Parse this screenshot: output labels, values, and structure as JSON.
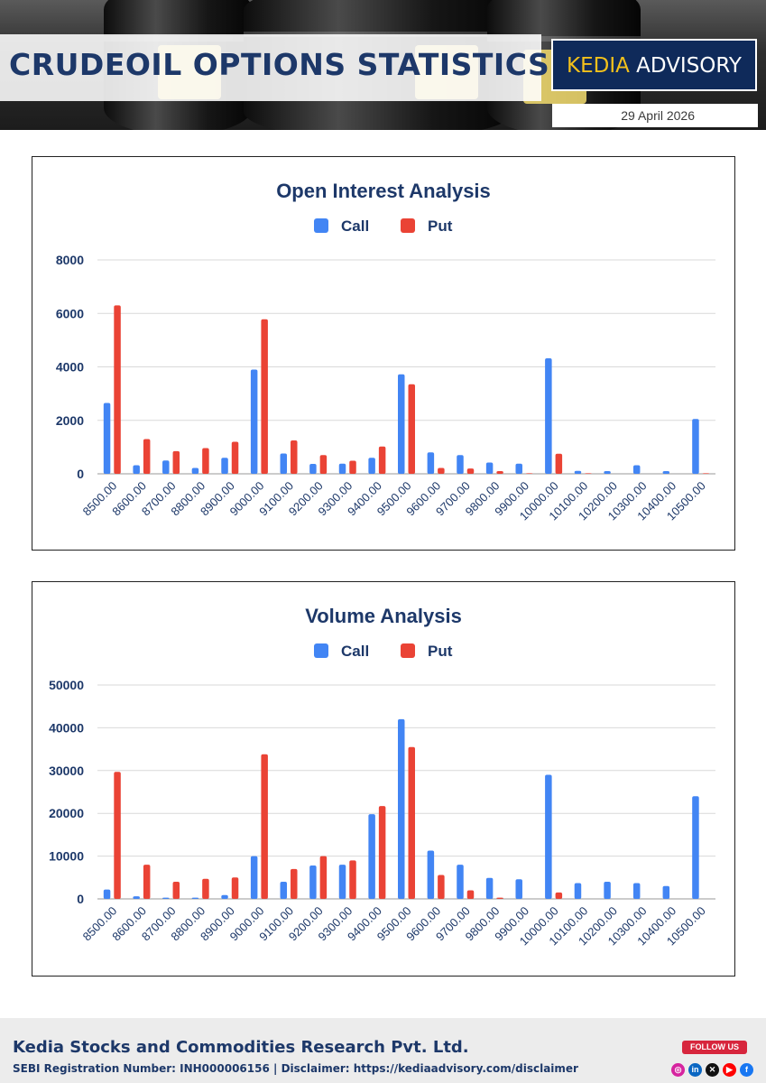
{
  "header": {
    "title": "CRUDEOIL OPTIONS STATISTICS",
    "brand_primary": "KEDIA",
    "brand_secondary": " ADVISORY",
    "date": "29 April 2026"
  },
  "colors": {
    "call": "#4285f4",
    "put": "#ea4335",
    "text": "#1d3869",
    "brand_bg": "#0f2a5a",
    "brand_accent": "#f3c11b"
  },
  "chart_data": [
    {
      "type": "bar",
      "title": "Open Interest Analysis",
      "legend_placement": "top",
      "categories": [
        "8500.00",
        "8600.00",
        "8700.00",
        "8800.00",
        "8900.00",
        "9000.00",
        "9100.00",
        "9200.00",
        "9300.00",
        "9400.00",
        "9500.00",
        "9600.00",
        "9700.00",
        "9800.00",
        "9900.00",
        "10000.00",
        "10100.00",
        "10200.00",
        "10300.00",
        "10400.00",
        "10500.00"
      ],
      "series": [
        {
          "name": "Call",
          "color": "#4285f4",
          "values": [
            2650,
            320,
            500,
            220,
            600,
            3900,
            760,
            370,
            380,
            600,
            3720,
            800,
            700,
            420,
            380,
            4320,
            110,
            100,
            320,
            100,
            2050
          ]
        },
        {
          "name": "Put",
          "color": "#ea4335",
          "values": [
            6300,
            1300,
            850,
            960,
            1200,
            5780,
            1250,
            700,
            490,
            1020,
            3350,
            220,
            200,
            100,
            20,
            750,
            20,
            0,
            0,
            0,
            20
          ]
        }
      ],
      "ylim": [
        0,
        8000
      ],
      "yticks": [
        0,
        2000,
        4000,
        6000,
        8000
      ],
      "grid": true
    },
    {
      "type": "bar",
      "title": "Volume Analysis",
      "legend_placement": "top",
      "categories": [
        "8500.00",
        "8600.00",
        "8700.00",
        "8800.00",
        "8900.00",
        "9000.00",
        "9100.00",
        "9200.00",
        "9300.00",
        "9400.00",
        "9500.00",
        "9600.00",
        "9700.00",
        "9800.00",
        "9900.00",
        "10000.00",
        "10100.00",
        "10200.00",
        "10300.00",
        "10400.00",
        "10500.00"
      ],
      "series": [
        {
          "name": "Call",
          "color": "#4285f4",
          "values": [
            2200,
            600,
            300,
            300,
            900,
            10000,
            4000,
            7800,
            8000,
            19800,
            42000,
            11300,
            8000,
            4900,
            4600,
            29000,
            3700,
            4000,
            3700,
            3000,
            24000
          ]
        },
        {
          "name": "Put",
          "color": "#ea4335",
          "values": [
            29700,
            8000,
            4000,
            4700,
            5000,
            33800,
            7000,
            10000,
            9000,
            21700,
            35500,
            5600,
            2000,
            300,
            0,
            1500,
            0,
            0,
            0,
            0,
            0
          ]
        }
      ],
      "ylim": [
        0,
        50000
      ],
      "yticks": [
        0,
        10000,
        20000,
        30000,
        40000,
        50000
      ],
      "grid": true
    }
  ],
  "footer": {
    "company": "Kedia Stocks and Commodities Research Pvt. Ltd.",
    "sebi": "SEBI Registration Number: INH000006156 | Disclaimer: https://kediaadvisory.com/disclaimer",
    "follow_label": "FOLLOW US",
    "social_icons": [
      "instagram-icon",
      "linkedin-icon",
      "x-icon",
      "youtube-icon",
      "facebook-icon"
    ]
  }
}
